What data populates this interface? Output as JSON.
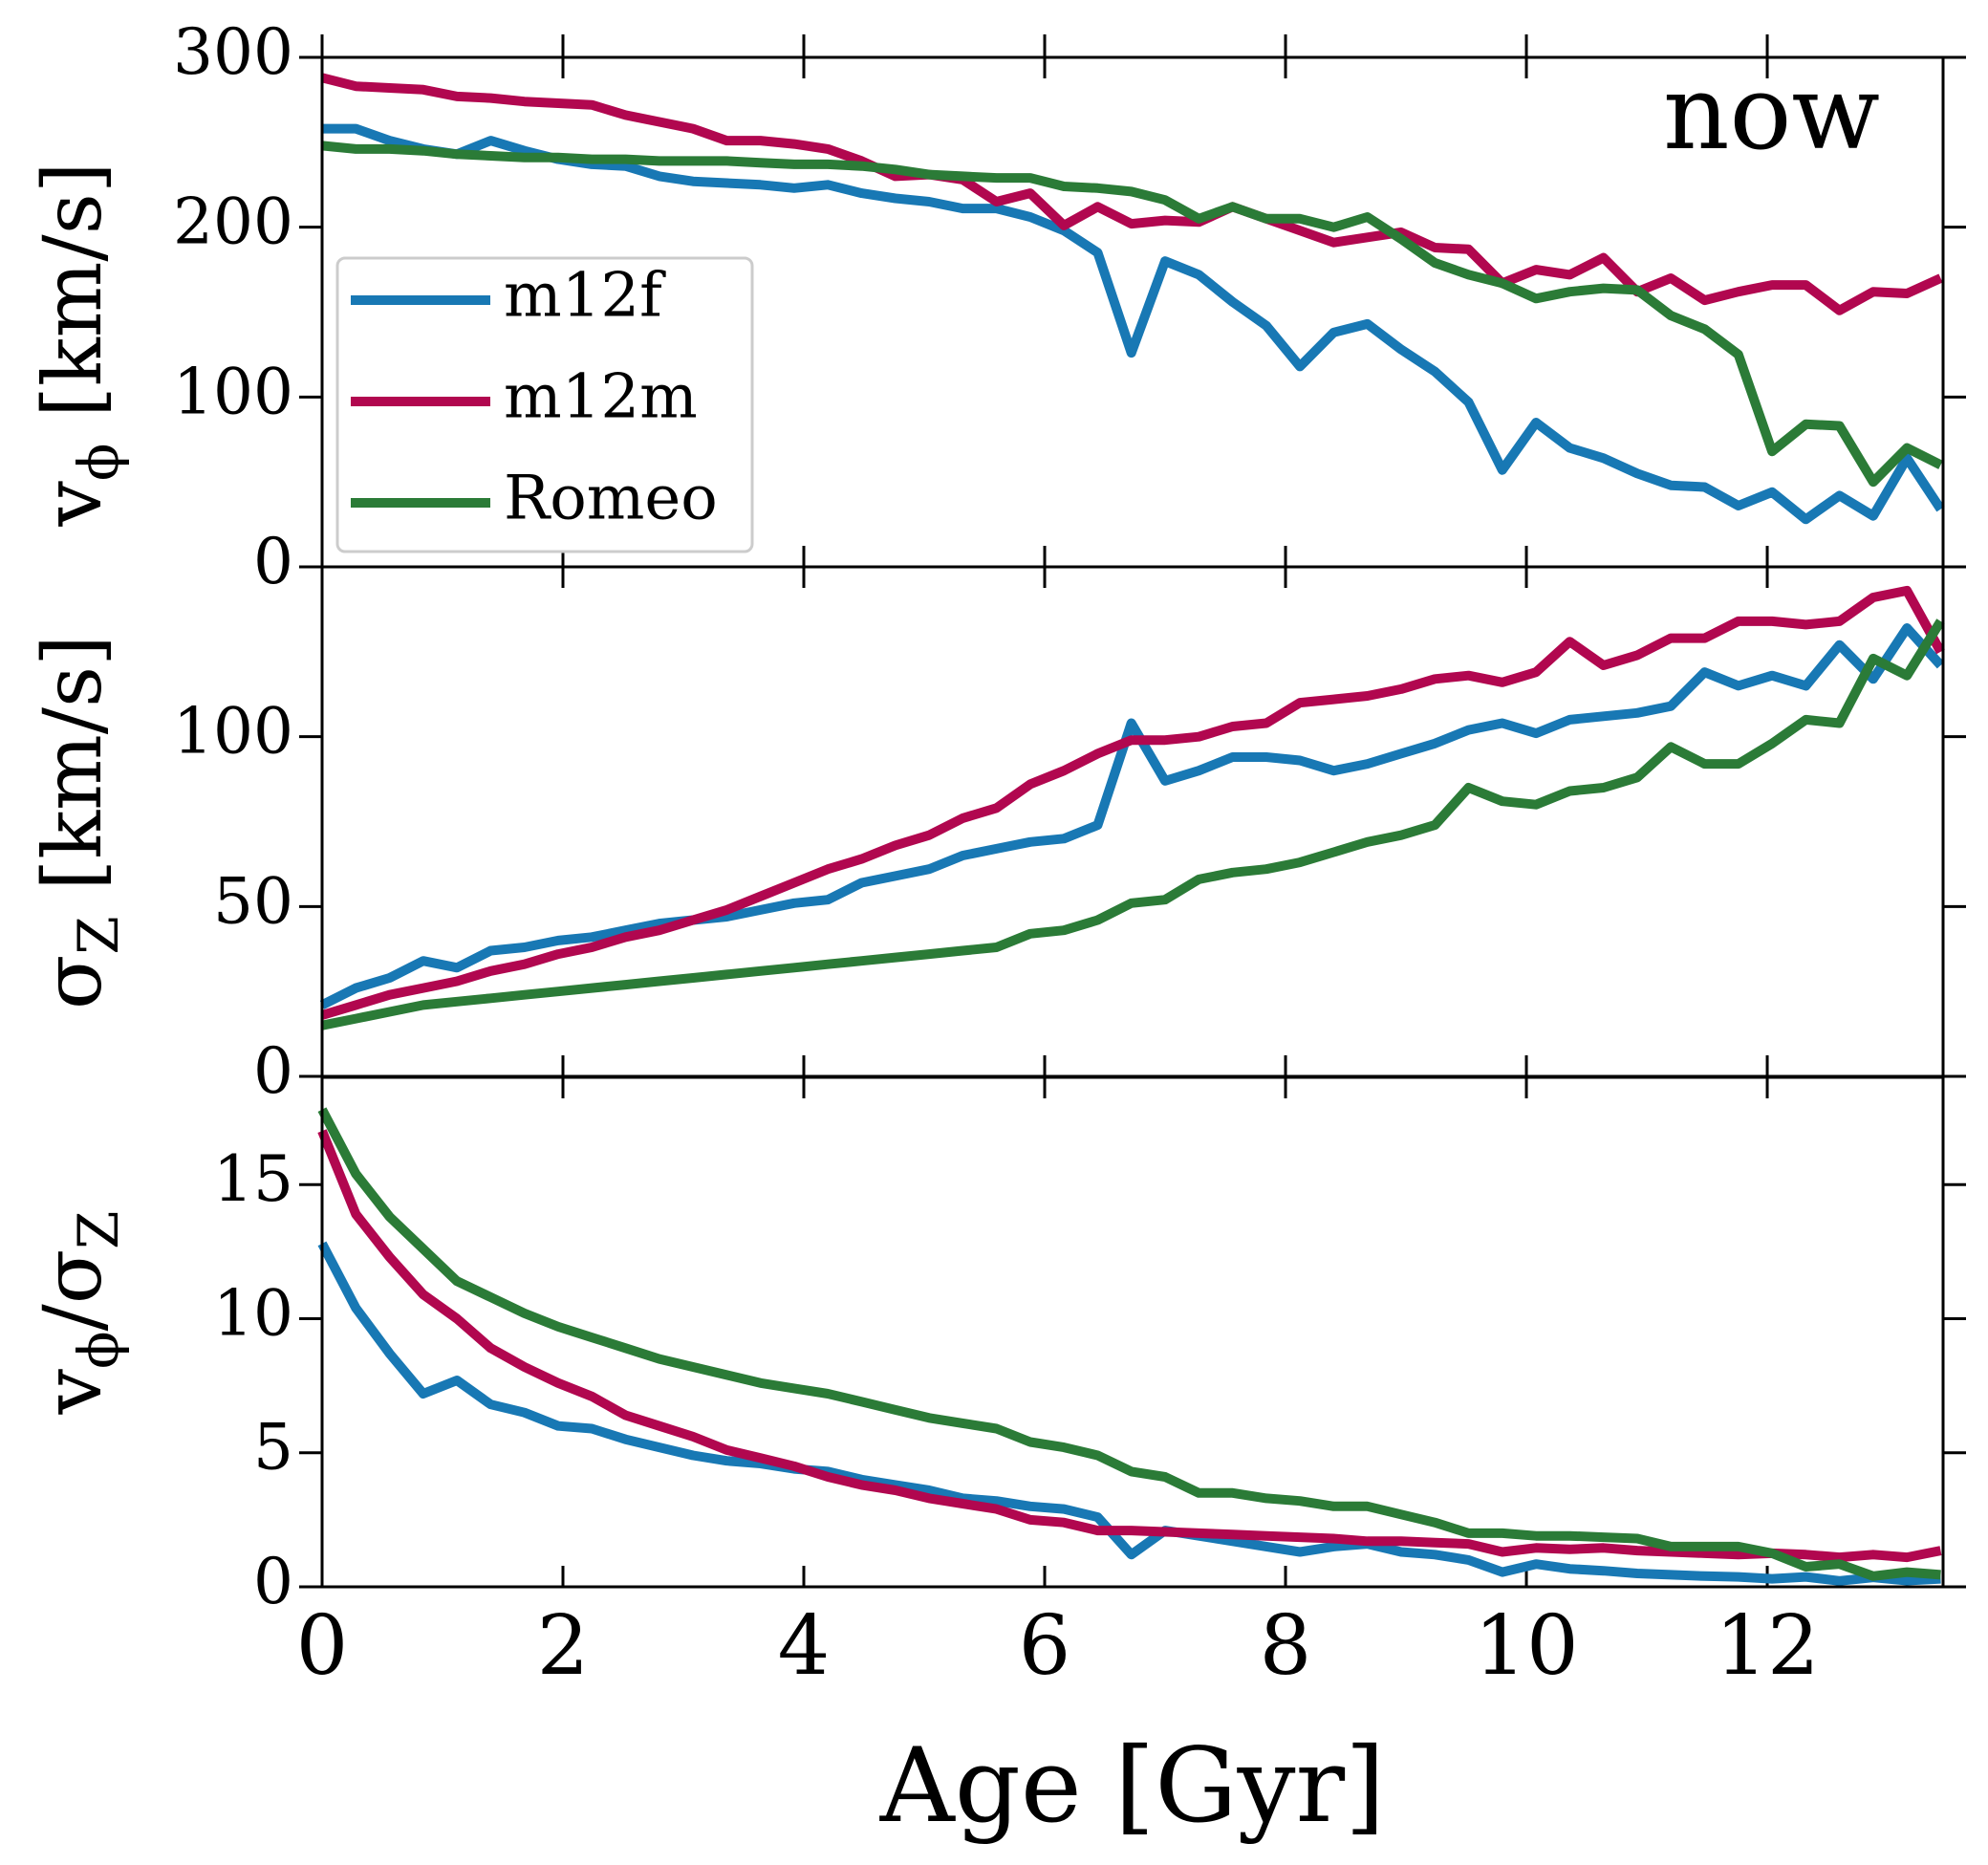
{
  "chart_data": [
    {
      "type": "line",
      "annotation": "now",
      "ylabel": [
        {
          "text": "v"
        },
        {
          "text": "ϕ",
          "sub": true
        },
        {
          "text": " [km/s]"
        }
      ],
      "x": [
        0,
        0.28,
        0.56,
        0.84,
        1.12,
        1.4,
        1.68,
        1.96,
        2.24,
        2.52,
        2.8,
        3.08,
        3.36,
        3.64,
        3.92,
        4.2,
        4.48,
        4.76,
        5.04,
        5.32,
        5.6,
        5.88,
        6.16,
        6.44,
        6.72,
        7.0,
        7.28,
        7.56,
        7.84,
        8.12,
        8.4,
        8.68,
        8.96,
        9.24,
        9.52,
        9.8,
        10.08,
        10.36,
        10.64,
        10.92,
        11.2,
        11.48,
        11.76,
        12.04,
        12.32,
        12.6,
        12.88,
        13.16,
        13.44
      ],
      "xlim": [
        0,
        13.46
      ],
      "xticks": [
        0,
        2,
        4,
        6,
        8,
        10,
        12
      ],
      "ylim": [
        0,
        300
      ],
      "yticks": [
        0,
        100,
        200,
        300
      ],
      "legend": "upper left",
      "series": [
        {
          "name": "m12f",
          "color": "#1878b4",
          "values": [
            258,
            258,
            251,
            246,
            243,
            251,
            245,
            240,
            237,
            236,
            230,
            227,
            226,
            225,
            223,
            225,
            220,
            217,
            215,
            211,
            211,
            206,
            198,
            185,
            126,
            180,
            172,
            156,
            142,
            118,
            138,
            143,
            128,
            115,
            97,
            57,
            85,
            70,
            64,
            55,
            48,
            47,
            36,
            44,
            28,
            42,
            30,
            64,
            34
          ]
        },
        {
          "name": "m12m",
          "color": "#b1074f",
          "values": [
            288,
            283,
            282,
            281,
            277,
            276,
            274,
            273,
            272,
            266,
            262,
            258,
            251,
            251,
            249,
            246,
            239,
            230,
            231,
            228,
            215,
            220,
            201,
            212,
            202,
            204,
            203,
            212,
            205,
            198,
            191,
            194,
            197,
            188,
            187,
            167,
            175,
            172,
            182,
            162,
            170,
            157,
            162,
            166,
            166,
            151,
            162,
            161,
            170
          ]
        },
        {
          "name": "Romeo",
          "color": "#2b7b37",
          "values": [
            248,
            246,
            246,
            245,
            243,
            242,
            241,
            241,
            240,
            240,
            239,
            239,
            239,
            238,
            237,
            237,
            236,
            234,
            231,
            230,
            229,
            229,
            224,
            223,
            221,
            216,
            205,
            212,
            205,
            205,
            200,
            206,
            193,
            179,
            172,
            167,
            158,
            162,
            164,
            163,
            148,
            140,
            125,
            68,
            84,
            83,
            50,
            70,
            60
          ]
        }
      ]
    },
    {
      "type": "line",
      "ylabel": [
        {
          "text": "σ"
        },
        {
          "text": "Z",
          "sub": true
        },
        {
          "text": " [km/s]"
        }
      ],
      "x": [
        0,
        0.28,
        0.56,
        0.84,
        1.12,
        1.4,
        1.68,
        1.96,
        2.24,
        2.52,
        2.8,
        3.08,
        3.36,
        3.64,
        3.92,
        4.2,
        4.48,
        4.76,
        5.04,
        5.32,
        5.6,
        5.88,
        6.16,
        6.44,
        6.72,
        7.0,
        7.28,
        7.56,
        7.84,
        8.12,
        8.4,
        8.68,
        8.96,
        9.24,
        9.52,
        9.8,
        10.08,
        10.36,
        10.64,
        10.92,
        11.2,
        11.48,
        11.76,
        12.04,
        12.32,
        12.6,
        12.88,
        13.16,
        13.44
      ],
      "xlim": [
        0,
        13.46
      ],
      "xticks": [
        0,
        2,
        4,
        6,
        8,
        10,
        12
      ],
      "ylim": [
        0,
        150
      ],
      "yticks": [
        0,
        50,
        100
      ],
      "series": [
        {
          "color": "#1878b4",
          "values": [
            21,
            26,
            29,
            34,
            32,
            37,
            38,
            40,
            41,
            43,
            45,
            46,
            47,
            49,
            51,
            52,
            57,
            59,
            61,
            65,
            67,
            69,
            70,
            74,
            104,
            87,
            90,
            94,
            94,
            93,
            90,
            92,
            95,
            98,
            102,
            104,
            101,
            105,
            106,
            107,
            109,
            119,
            115,
            118,
            115,
            127,
            117,
            132,
            121
          ]
        },
        {
          "color": "#b1074f",
          "values": [
            18,
            21,
            24,
            26,
            28,
            31,
            33,
            36,
            38,
            41,
            43,
            46,
            49,
            53,
            57,
            61,
            64,
            68,
            71,
            76,
            79,
            86,
            90,
            95,
            99,
            99,
            100,
            103,
            104,
            110,
            111,
            112,
            114,
            117,
            118,
            116,
            119,
            128,
            121,
            124,
            129,
            129,
            134,
            134,
            133,
            134,
            141,
            143,
            125
          ]
        },
        {
          "color": "#2b7b37",
          "values": [
            15,
            17,
            19,
            21,
            22,
            23,
            24,
            25,
            26,
            27,
            28,
            29,
            30,
            31,
            32,
            33,
            34,
            35,
            36,
            37,
            38,
            42,
            43,
            46,
            51,
            52,
            58,
            60,
            61,
            63,
            66,
            69,
            71,
            74,
            85,
            81,
            80,
            84,
            85,
            88,
            97,
            92,
            92,
            98,
            105,
            104,
            123,
            118,
            134
          ]
        }
      ]
    },
    {
      "type": "line",
      "xlabel": "Age [Gyr]",
      "ylabel": [
        {
          "text": "v"
        },
        {
          "text": "ϕ",
          "sub": true
        },
        {
          "text": "/σ"
        },
        {
          "text": "Z",
          "sub": true
        }
      ],
      "x": [
        0,
        0.28,
        0.56,
        0.84,
        1.12,
        1.4,
        1.68,
        1.96,
        2.24,
        2.52,
        2.8,
        3.08,
        3.36,
        3.64,
        3.92,
        4.2,
        4.48,
        4.76,
        5.04,
        5.32,
        5.6,
        5.88,
        6.16,
        6.44,
        6.72,
        7.0,
        7.28,
        7.56,
        7.84,
        8.12,
        8.4,
        8.68,
        8.96,
        9.24,
        9.52,
        9.8,
        10.08,
        10.36,
        10.64,
        10.92,
        11.2,
        11.48,
        11.76,
        12.04,
        12.32,
        12.6,
        12.88,
        13.16,
        13.44
      ],
      "xlim": [
        0,
        13.46
      ],
      "xticks": [
        0,
        2,
        4,
        6,
        8,
        10,
        12
      ],
      "ylim": [
        0,
        19
      ],
      "yticks": [
        0,
        5,
        10,
        15
      ],
      "series": [
        {
          "color": "#1878b4",
          "values": [
            12.8,
            10.4,
            8.7,
            7.2,
            7.7,
            6.8,
            6.5,
            6.0,
            5.9,
            5.5,
            5.2,
            4.9,
            4.7,
            4.6,
            4.4,
            4.3,
            4.0,
            3.8,
            3.6,
            3.3,
            3.2,
            3.0,
            2.9,
            2.6,
            1.2,
            2.1,
            1.9,
            1.7,
            1.5,
            1.3,
            1.5,
            1.6,
            1.3,
            1.2,
            1.0,
            0.55,
            0.85,
            0.67,
            0.6,
            0.5,
            0.45,
            0.4,
            0.37,
            0.3,
            0.37,
            0.22,
            0.35,
            0.23,
            0.3
          ]
        },
        {
          "color": "#b1074f",
          "values": [
            17,
            13.9,
            12.3,
            10.9,
            10,
            8.9,
            8.2,
            7.6,
            7.1,
            6.4,
            6.0,
            5.6,
            5.1,
            4.8,
            4.5,
            4.1,
            3.8,
            3.6,
            3.3,
            3.1,
            2.9,
            2.5,
            2.4,
            2.1,
            2.1,
            2.05,
            2.0,
            1.95,
            1.9,
            1.85,
            1.8,
            1.7,
            1.7,
            1.65,
            1.6,
            1.3,
            1.45,
            1.4,
            1.45,
            1.35,
            1.3,
            1.25,
            1.2,
            1.25,
            1.2,
            1.1,
            1.2,
            1.1,
            1.35
          ]
        },
        {
          "color": "#2b7b37",
          "values": [
            17.8,
            15.4,
            13.8,
            12.6,
            11.4,
            10.8,
            10.2,
            9.7,
            9.3,
            8.9,
            8.5,
            8.2,
            7.9,
            7.6,
            7.4,
            7.2,
            6.9,
            6.6,
            6.3,
            6.1,
            5.9,
            5.4,
            5.2,
            4.9,
            4.3,
            4.1,
            3.5,
            3.5,
            3.3,
            3.2,
            3.0,
            3.0,
            2.7,
            2.4,
            2.0,
            2.0,
            1.9,
            1.9,
            1.85,
            1.8,
            1.5,
            1.5,
            1.5,
            1.25,
            0.75,
            0.85,
            0.4,
            0.55,
            0.45
          ]
        }
      ]
    }
  ]
}
